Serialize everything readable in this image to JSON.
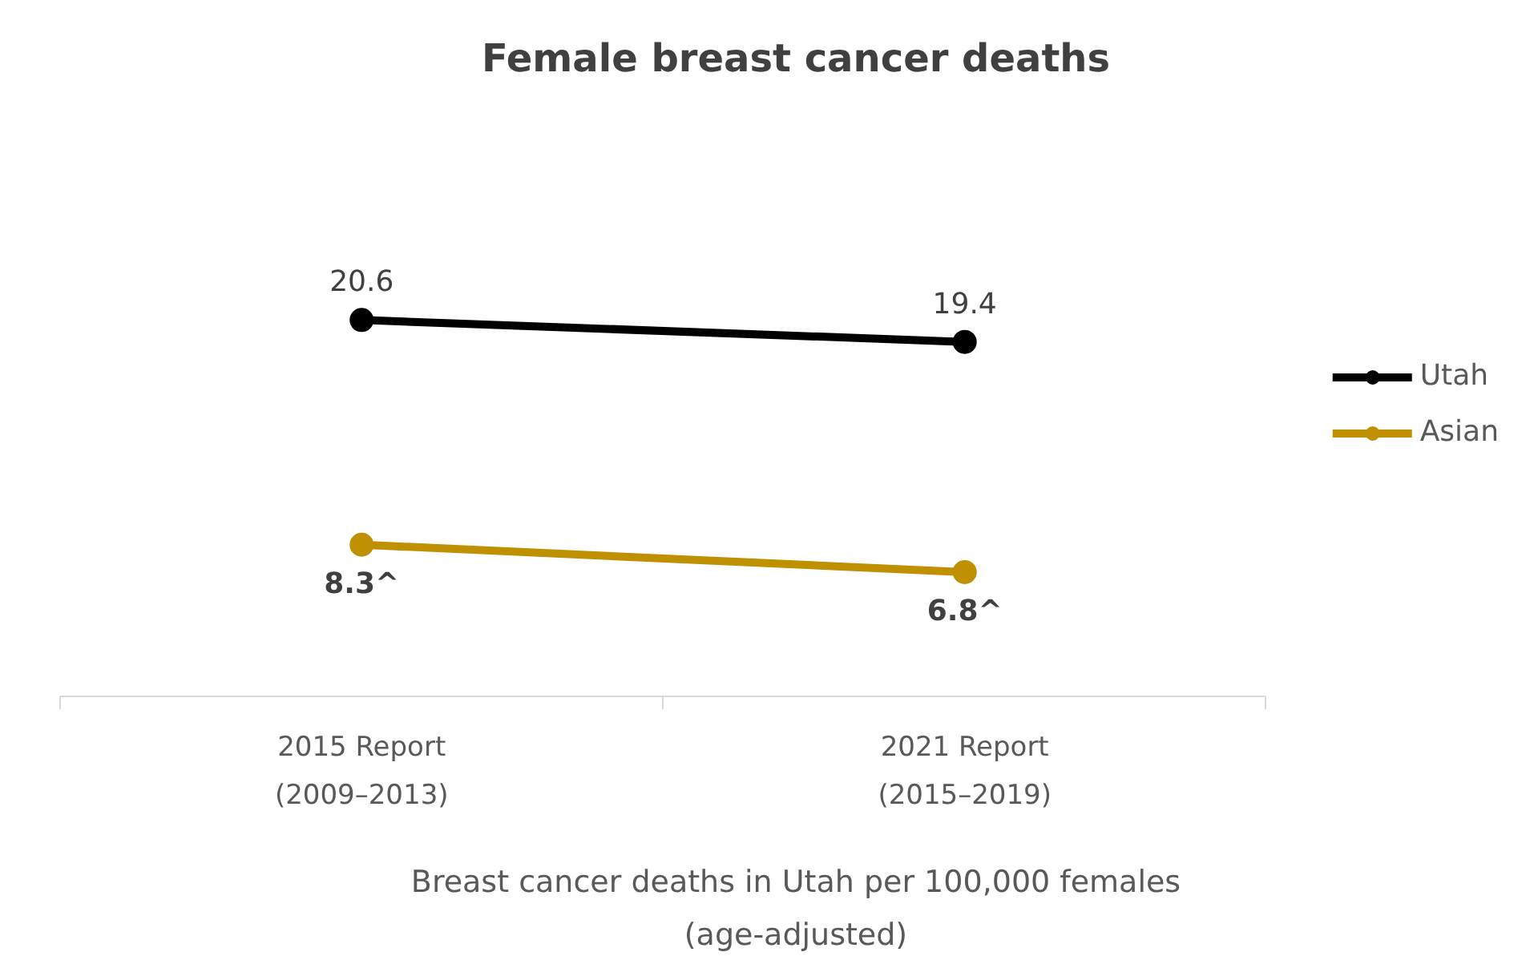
{
  "chart_data": {
    "type": "line",
    "title": "Female breast cancer deaths",
    "xlabel": "Breast cancer deaths in Utah per 100,000 females (age-adjusted)",
    "categories": [
      "2015 Report\n(2009–2013)",
      "2021 Report\n(2015–2019)"
    ],
    "series": [
      {
        "name": "Utah",
        "color": "#000000",
        "values": [
          20.6,
          19.4
        ],
        "value_labels": [
          "20.6",
          "19.4"
        ]
      },
      {
        "name": "Asian",
        "color": "#bf9000",
        "values": [
          8.3,
          6.8
        ],
        "value_labels": [
          "8.3^",
          "6.8^"
        ]
      }
    ],
    "tick_labels": "x",
    "grid": false,
    "legend": "right",
    "marker": "circle",
    "line_style": "solid"
  }
}
